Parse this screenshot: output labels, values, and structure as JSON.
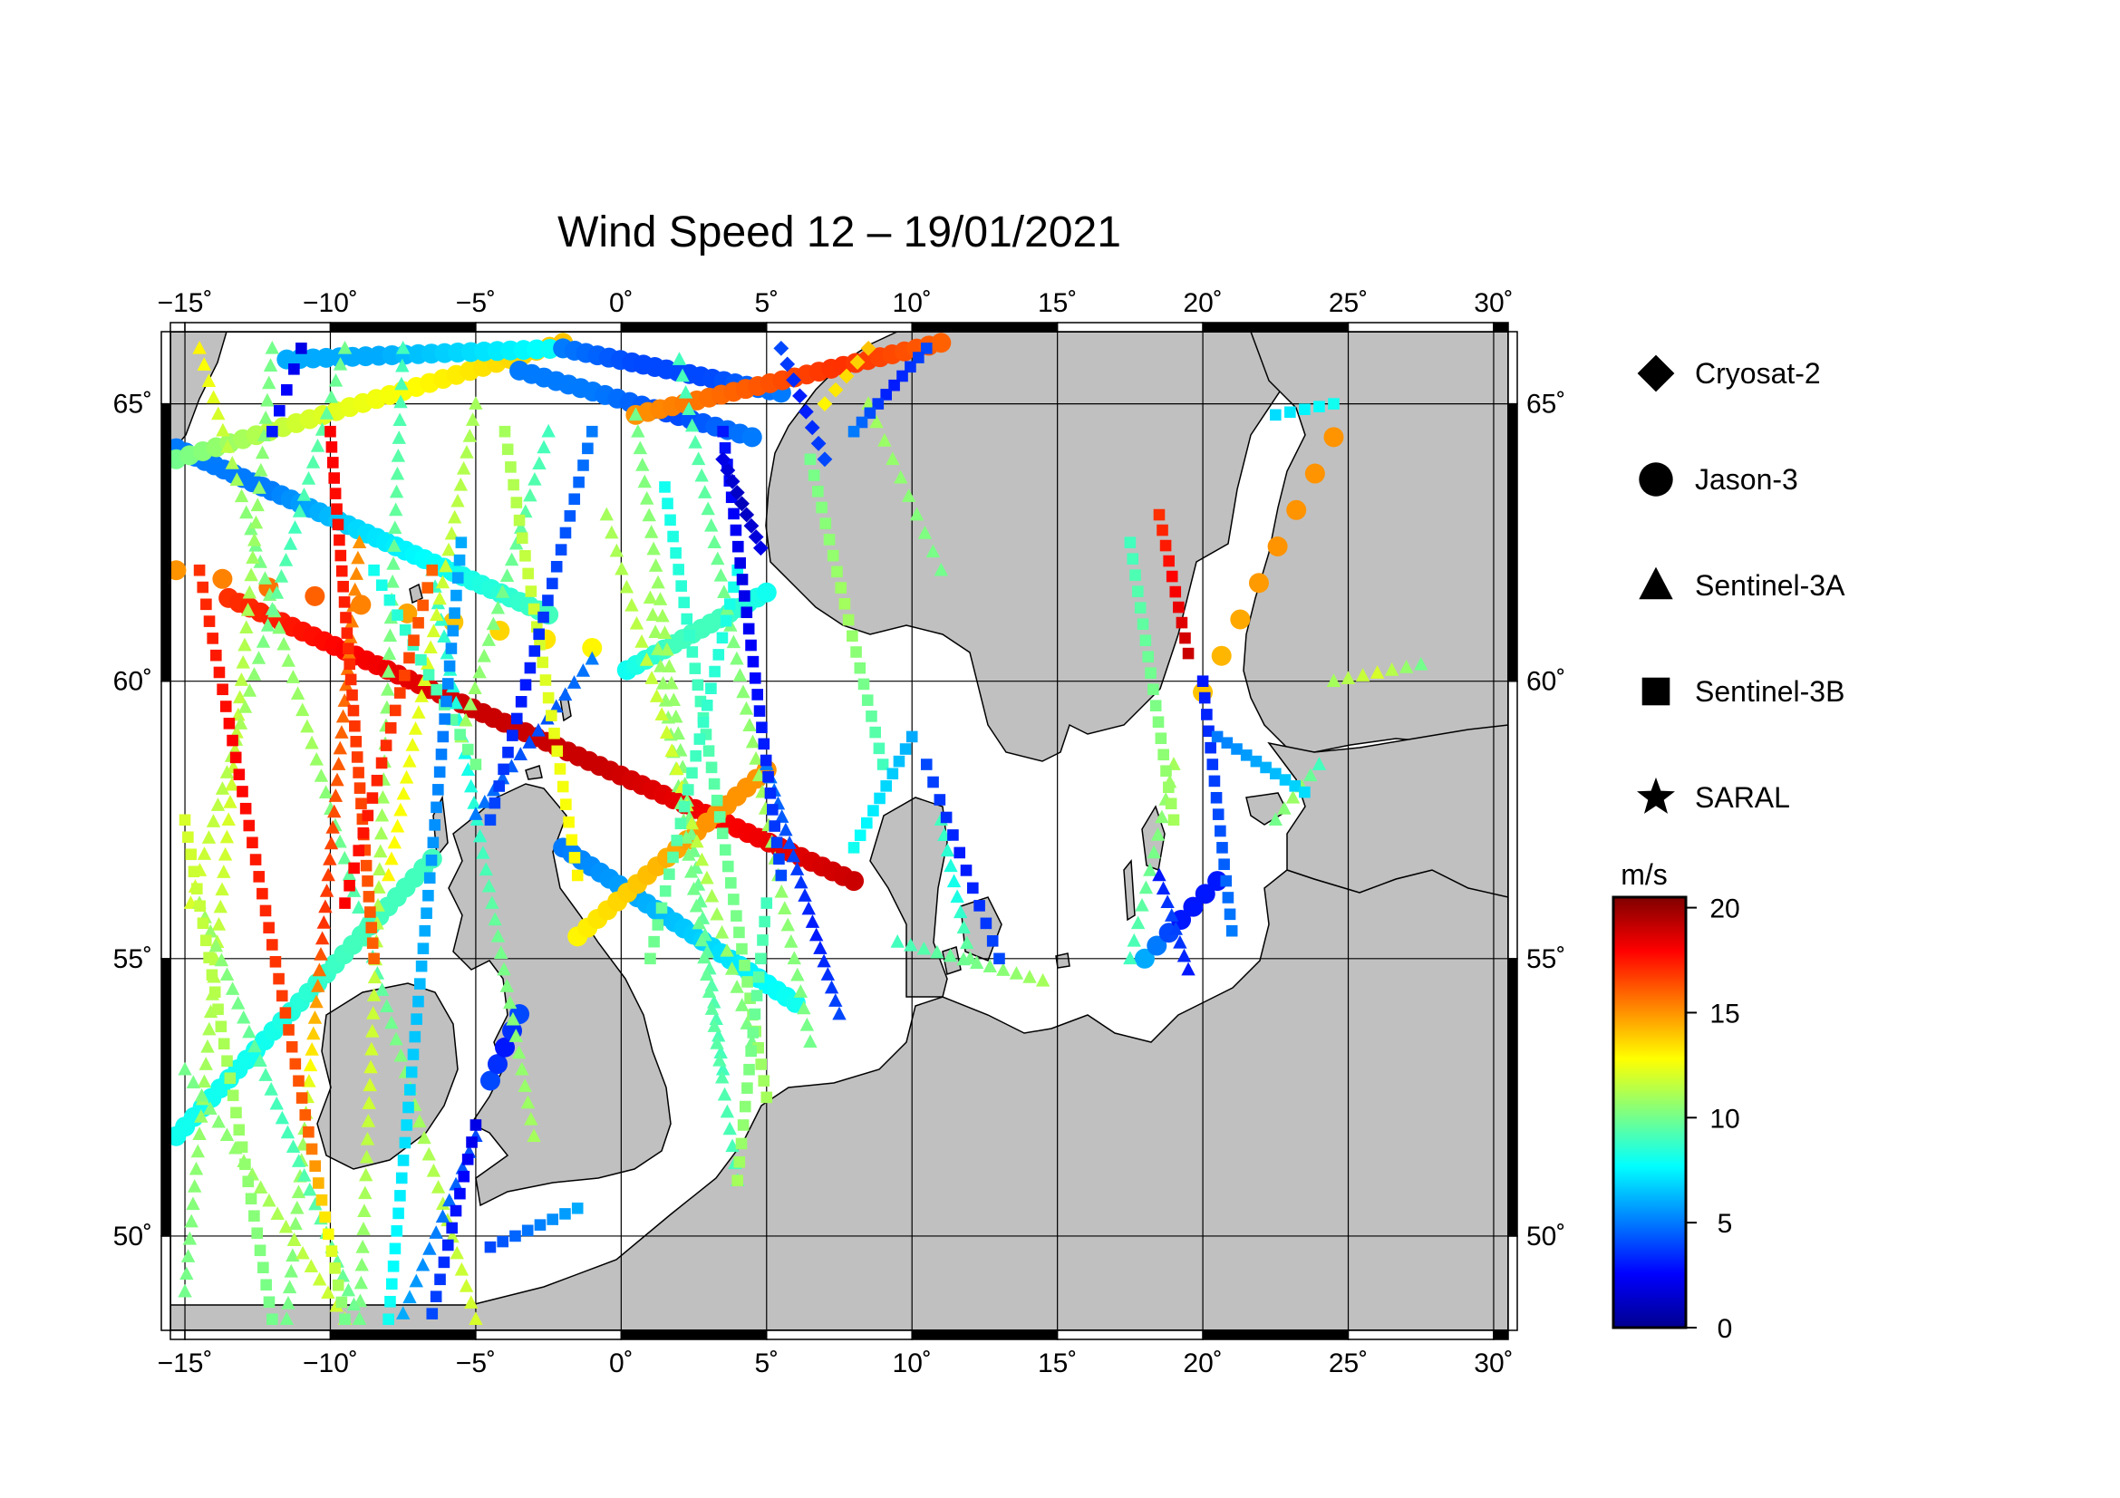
{
  "title": "Wind Speed 12 – 19/01/2021",
  "map": {
    "lon_range": [
      -15.5,
      30.5
    ],
    "lat_range": [
      48.3,
      66.3
    ],
    "lon_ticks": [
      -15,
      -10,
      -5,
      0,
      5,
      10,
      15,
      20,
      25,
      30
    ],
    "lat_ticks": [
      50,
      55,
      60,
      65
    ],
    "lon_tick_labels": [
      "−15˚",
      "−10˚",
      "−5˚",
      "0˚",
      "5˚",
      "10˚",
      "15˚",
      "20˚",
      "25˚",
      "30˚"
    ],
    "lat_tick_labels": [
      "50˚",
      "55˚",
      "60˚",
      "65˚"
    ],
    "land_color": "#c0c0c0",
    "sea_color": "#ffffff"
  },
  "legend": {
    "items": [
      {
        "label": "Cryosat-2",
        "symbol": "diamond-icon"
      },
      {
        "label": "Jason-3",
        "symbol": "circle-icon"
      },
      {
        "label": "Sentinel-3A",
        "symbol": "triangle-icon"
      },
      {
        "label": "Sentinel-3B",
        "symbol": "square-icon"
      },
      {
        "label": "SARAL",
        "symbol": "star-icon"
      }
    ]
  },
  "colorbar": {
    "unit": "m/s",
    "min": 0,
    "max": 20.5,
    "ticks": [
      0,
      5,
      10,
      15,
      20
    ],
    "tick_labels": [
      "0",
      "5",
      "10",
      "15",
      "20"
    ],
    "colors": [
      "#00008f",
      "#0000ff",
      "#0080ff",
      "#00ffff",
      "#80ff80",
      "#ffff00",
      "#ff8000",
      "#ff0000",
      "#800000"
    ]
  },
  "chart_data": {
    "type": "scatter",
    "title": "Wind Speed 12 – 19/01/2021",
    "units": "m/s",
    "tracks": [
      {
        "satellite": "Jason-3",
        "start": [
          -15.3,
          64.2
        ],
        "end": [
          -2.5,
          61.2
        ],
        "n": 40,
        "w": [
          5,
          5,
          7,
          8,
          9
        ]
      },
      {
        "satellite": "Jason-3",
        "start": [
          -15.3,
          64.0
        ],
        "end": [
          -2.0,
          66.1
        ],
        "n": 30,
        "w": [
          10,
          12,
          13,
          14
        ]
      },
      {
        "satellite": "Jason-3",
        "start": [
          -15.3,
          62.0
        ],
        "end": [
          -1.0,
          60.6
        ],
        "n": 10,
        "w": [
          15,
          16,
          14,
          13
        ]
      },
      {
        "satellite": "Jason-3",
        "start": [
          -13.5,
          61.5
        ],
        "end": [
          8.0,
          56.4
        ],
        "n": 60,
        "w": [
          17,
          18,
          19,
          19,
          18,
          19
        ]
      },
      {
        "satellite": "Jason-3",
        "start": [
          -11.5,
          65.8
        ],
        "end": [
          -2.0,
          66.0
        ],
        "n": 22,
        "w": [
          6,
          6,
          7,
          8
        ]
      },
      {
        "satellite": "Jason-3",
        "start": [
          -2.0,
          66.0
        ],
        "end": [
          5.5,
          65.2
        ],
        "n": 20,
        "w": [
          5,
          4,
          4,
          5
        ]
      },
      {
        "satellite": "Jason-3",
        "start": [
          -3.5,
          65.6
        ],
        "end": [
          4.5,
          64.4
        ],
        "n": 20,
        "w": [
          5,
          5,
          4,
          5
        ]
      },
      {
        "satellite": "Jason-3",
        "start": [
          0.5,
          64.8
        ],
        "end": [
          11.0,
          66.1
        ],
        "n": 26,
        "w": [
          15,
          16,
          17,
          16
        ]
      },
      {
        "satellite": "Jason-3",
        "start": [
          0.2,
          60.2
        ],
        "end": [
          5.0,
          61.6
        ],
        "n": 16,
        "w": [
          8,
          9,
          9,
          8
        ]
      },
      {
        "satellite": "Jason-3",
        "start": [
          -2.0,
          57.0
        ],
        "end": [
          6.0,
          54.2
        ],
        "n": 26,
        "w": [
          5,
          6,
          7,
          8
        ]
      },
      {
        "satellite": "Jason-3",
        "start": [
          -1.5,
          55.4
        ],
        "end": [
          5.0,
          58.4
        ],
        "n": 20,
        "w": [
          13,
          14,
          15,
          15
        ]
      },
      {
        "satellite": "Jason-3",
        "start": [
          -15.3,
          51.8
        ],
        "end": [
          -6.5,
          56.8
        ],
        "n": 30,
        "w": [
          8,
          8,
          9,
          9
        ]
      },
      {
        "satellite": "Jason-3",
        "start": [
          -4.5,
          52.8
        ],
        "end": [
          -3.5,
          54.0
        ],
        "n": 5,
        "w": [
          4,
          3,
          4
        ]
      },
      {
        "satellite": "Jason-3",
        "start": [
          18.0,
          55.0
        ],
        "end": [
          20.5,
          56.4
        ],
        "n": 7,
        "w": [
          6,
          3,
          3
        ]
      },
      {
        "satellite": "Jason-3",
        "start": [
          20.0,
          59.8
        ],
        "end": [
          24.5,
          64.4
        ],
        "n": 8,
        "w": [
          14,
          15,
          15
        ]
      },
      {
        "satellite": "Sentinel-3A",
        "start": [
          -14.5,
          66.0
        ],
        "end": [
          -5.0,
          48.5
        ],
        "n": 60,
        "w": [
          13,
          10,
          11,
          9,
          11,
          12
        ]
      },
      {
        "satellite": "Sentinel-3A",
        "start": [
          -12.0,
          66.0
        ],
        "end": [
          -15.0,
          49.0
        ],
        "n": 55,
        "w": [
          10,
          11,
          12,
          11,
          10
        ]
      },
      {
        "satellite": "Sentinel-3A",
        "start": [
          -9.5,
          66.0
        ],
        "end": [
          -14.8,
          56.0
        ],
        "n": 35,
        "w": [
          10,
          9,
          11,
          12
        ]
      },
      {
        "satellite": "Sentinel-3A",
        "start": [
          -9.0,
          62.5
        ],
        "end": [
          -11.5,
          48.5
        ],
        "n": 50,
        "w": [
          15,
          16,
          17,
          11,
          10
        ]
      },
      {
        "satellite": "Sentinel-3A",
        "start": [
          -7.5,
          66.0
        ],
        "end": [
          -9.0,
          48.5
        ],
        "n": 55,
        "w": [
          9,
          10,
          11,
          12,
          10
        ]
      },
      {
        "satellite": "Sentinel-3A",
        "start": [
          -14.5,
          56.0
        ],
        "end": [
          -9.0,
          48.5
        ],
        "n": 30,
        "w": [
          11,
          9,
          10
        ]
      },
      {
        "satellite": "Sentinel-3A",
        "start": [
          -15.0,
          53.0
        ],
        "end": [
          -9.5,
          48.5
        ],
        "n": 20,
        "w": [
          10,
          11,
          12
        ]
      },
      {
        "satellite": "Sentinel-3A",
        "start": [
          -6.5,
          62.0
        ],
        "end": [
          -3.0,
          51.8
        ],
        "n": 35,
        "w": [
          9,
          8,
          10,
          11
        ]
      },
      {
        "satellite": "Sentinel-3A",
        "start": [
          -5.0,
          65.0
        ],
        "end": [
          -8.0,
          56.5
        ],
        "n": 30,
        "w": [
          11,
          12,
          13
        ]
      },
      {
        "satellite": "Sentinel-3A",
        "start": [
          -2.5,
          64.5
        ],
        "end": [
          -5.5,
          59.0
        ],
        "n": 20,
        "w": [
          9,
          10,
          11
        ]
      },
      {
        "satellite": "Sentinel-3A",
        "start": [
          -1.0,
          60.4
        ],
        "end": [
          -5.0,
          57.6
        ],
        "n": 14,
        "w": [
          5,
          4,
          5
        ]
      },
      {
        "satellite": "Sentinel-3A",
        "start": [
          0.5,
          64.8
        ],
        "end": [
          3.5,
          53.0
        ],
        "n": 40,
        "w": [
          10,
          11,
          10,
          9
        ]
      },
      {
        "satellite": "Sentinel-3A",
        "start": [
          2.0,
          65.8
        ],
        "end": [
          6.5,
          53.5
        ],
        "n": 42,
        "w": [
          9,
          10,
          11,
          10
        ]
      },
      {
        "satellite": "Sentinel-3A",
        "start": [
          1.0,
          61.5
        ],
        "end": [
          4.0,
          51.0
        ],
        "n": 35,
        "w": [
          11,
          10,
          9
        ]
      },
      {
        "satellite": "Sentinel-3A",
        "start": [
          -0.5,
          63.0
        ],
        "end": [
          4.5,
          53.5
        ],
        "n": 30,
        "w": [
          11,
          12,
          10
        ]
      },
      {
        "satellite": "Sentinel-3A",
        "start": [
          5.0,
          58.5
        ],
        "end": [
          7.5,
          54.0
        ],
        "n": 20,
        "w": [
          5,
          4,
          3,
          4
        ]
      },
      {
        "satellite": "Sentinel-3A",
        "start": [
          8.5,
          65.0
        ],
        "end": [
          11.0,
          62.0
        ],
        "n": 10,
        "w": [
          11,
          10
        ]
      },
      {
        "satellite": "Sentinel-3A",
        "start": [
          -5.0,
          51.8
        ],
        "end": [
          -7.5,
          48.6
        ],
        "n": 12,
        "w": [
          4,
          5,
          6
        ]
      },
      {
        "satellite": "Sentinel-3A",
        "start": [
          11.0,
          57.5
        ],
        "end": [
          12.0,
          55.0
        ],
        "n": 10,
        "w": [
          9,
          8,
          10
        ]
      },
      {
        "satellite": "Sentinel-3A",
        "start": [
          17.5,
          55.0
        ],
        "end": [
          19.0,
          58.5
        ],
        "n": 12,
        "w": [
          9,
          10,
          11
        ]
      },
      {
        "satellite": "Sentinel-3A",
        "start": [
          18.5,
          56.5
        ],
        "end": [
          19.5,
          54.8
        ],
        "n": 8,
        "w": [
          3,
          4,
          3
        ]
      },
      {
        "satellite": "Sentinel-3A",
        "start": [
          22.5,
          57.5
        ],
        "end": [
          24.0,
          58.5
        ],
        "n": 6,
        "w": [
          10,
          11,
          9
        ]
      },
      {
        "satellite": "Sentinel-3A",
        "start": [
          24.5,
          60.0
        ],
        "end": [
          27.5,
          60.3
        ],
        "n": 7,
        "w": [
          11,
          12,
          10
        ]
      },
      {
        "satellite": "Sentinel-3A",
        "start": [
          9.5,
          55.3
        ],
        "end": [
          14.5,
          54.6
        ],
        "n": 12,
        "w": [
          9,
          10,
          11
        ]
      },
      {
        "satellite": "Sentinel-3B",
        "start": [
          -14.5,
          62.0
        ],
        "end": [
          -9.5,
          48.5
        ],
        "n": 45,
        "w": [
          17,
          18,
          17,
          16,
          10
        ]
      },
      {
        "satellite": "Sentinel-3B",
        "start": [
          -10.0,
          64.5
        ],
        "end": [
          -8.5,
          55.0
        ],
        "n": 35,
        "w": [
          18,
          17,
          16
        ]
      },
      {
        "satellite": "Sentinel-3B",
        "start": [
          -8.5,
          62.0
        ],
        "end": [
          -5.0,
          58.5
        ],
        "n": 14,
        "w": [
          8,
          9,
          10
        ]
      },
      {
        "satellite": "Sentinel-3B",
        "start": [
          -6.5,
          62.0
        ],
        "end": [
          -9.5,
          56.0
        ],
        "n": 20,
        "w": [
          16,
          17,
          18
        ]
      },
      {
        "satellite": "Sentinel-3B",
        "start": [
          -5.5,
          62.5
        ],
        "end": [
          -8.0,
          48.5
        ],
        "n": 45,
        "w": [
          6,
          5,
          6,
          7,
          8
        ]
      },
      {
        "satellite": "Sentinel-3B",
        "start": [
          -15.0,
          57.5
        ],
        "end": [
          -12.0,
          48.5
        ],
        "n": 30,
        "w": [
          12,
          11,
          10
        ]
      },
      {
        "satellite": "Sentinel-3B",
        "start": [
          -4.0,
          64.5
        ],
        "end": [
          -1.5,
          56.5
        ],
        "n": 26,
        "w": [
          11,
          12,
          13
        ]
      },
      {
        "satellite": "Sentinel-3B",
        "start": [
          -1.0,
          64.5
        ],
        "end": [
          -4.5,
          57.5
        ],
        "n": 24,
        "w": [
          5,
          4,
          3,
          4
        ]
      },
      {
        "satellite": "Sentinel-3B",
        "start": [
          1.5,
          63.5
        ],
        "end": [
          5.0,
          52.5
        ],
        "n": 38,
        "w": [
          8,
          9,
          10,
          11
        ]
      },
      {
        "satellite": "Sentinel-3B",
        "start": [
          4.0,
          62.0
        ],
        "end": [
          1.0,
          55.0
        ],
        "n": 24,
        "w": [
          8,
          9,
          10
        ]
      },
      {
        "satellite": "Sentinel-3B",
        "start": [
          3.5,
          64.5
        ],
        "end": [
          5.5,
          56.5
        ],
        "n": 28,
        "w": [
          3,
          2,
          3,
          4
        ]
      },
      {
        "satellite": "Sentinel-3B",
        "start": [
          6.5,
          64.0
        ],
        "end": [
          9.0,
          58.5
        ],
        "n": 20,
        "w": [
          10,
          11,
          9
        ]
      },
      {
        "satellite": "Sentinel-3B",
        "start": [
          10.5,
          66.0
        ],
        "end": [
          8.0,
          64.5
        ],
        "n": 10,
        "w": [
          4,
          3,
          5
        ]
      },
      {
        "satellite": "Sentinel-3B",
        "start": [
          10.0,
          59.0
        ],
        "end": [
          8.0,
          57.0
        ],
        "n": 10,
        "w": [
          6,
          7,
          8
        ]
      },
      {
        "satellite": "Sentinel-3B",
        "start": [
          10.5,
          58.5
        ],
        "end": [
          13.0,
          55.0
        ],
        "n": 12,
        "w": [
          4,
          3,
          4
        ]
      },
      {
        "satellite": "Sentinel-3B",
        "start": [
          17.5,
          62.5
        ],
        "end": [
          19.0,
          57.5
        ],
        "n": 18,
        "w": [
          9,
          10,
          11
        ]
      },
      {
        "satellite": "Sentinel-3B",
        "start": [
          18.5,
          63.0
        ],
        "end": [
          19.5,
          60.5
        ],
        "n": 10,
        "w": [
          17,
          18,
          19
        ]
      },
      {
        "satellite": "Sentinel-3B",
        "start": [
          20.0,
          60.0
        ],
        "end": [
          21.0,
          55.5
        ],
        "n": 16,
        "w": [
          3,
          4,
          5
        ]
      },
      {
        "satellite": "Sentinel-3B",
        "start": [
          20.5,
          59.0
        ],
        "end": [
          23.5,
          58.0
        ],
        "n": 10,
        "w": [
          5,
          6,
          7
        ]
      },
      {
        "satellite": "Sentinel-3B",
        "start": [
          22.5,
          64.8
        ],
        "end": [
          24.5,
          65.0
        ],
        "n": 5,
        "w": [
          7,
          8
        ]
      },
      {
        "satellite": "Sentinel-3B",
        "start": [
          -5.0,
          52.0
        ],
        "end": [
          -6.5,
          48.6
        ],
        "n": 12,
        "w": [
          2,
          3,
          4
        ]
      },
      {
        "satellite": "Sentinel-3B",
        "start": [
          -4.5,
          49.8
        ],
        "end": [
          -1.5,
          50.5
        ],
        "n": 8,
        "w": [
          4,
          5,
          6
        ]
      },
      {
        "satellite": "Sentinel-3B",
        "start": [
          -12.0,
          64.5
        ],
        "end": [
          -11.0,
          66.0
        ],
        "n": 5,
        "w": [
          3,
          2
        ]
      },
      {
        "satellite": "Sentinel-3B",
        "start": [
          5.0,
          56.0
        ],
        "end": [
          4.0,
          51.0
        ],
        "n": 16,
        "w": [
          9,
          10,
          11
        ]
      },
      {
        "satellite": "Cryosat-2",
        "start": [
          3.5,
          64.0
        ],
        "end": [
          4.8,
          62.4
        ],
        "n": 9,
        "w": [
          2,
          1,
          2
        ]
      },
      {
        "satellite": "Cryosat-2",
        "start": [
          5.5,
          66.0
        ],
        "end": [
          7.0,
          64.0
        ],
        "n": 8,
        "w": [
          4,
          3,
          4
        ]
      },
      {
        "satellite": "Cryosat-2",
        "start": [
          8.5,
          66.0
        ],
        "end": [
          7.0,
          65.0
        ],
        "n": 5,
        "w": [
          14,
          13
        ]
      }
    ]
  }
}
